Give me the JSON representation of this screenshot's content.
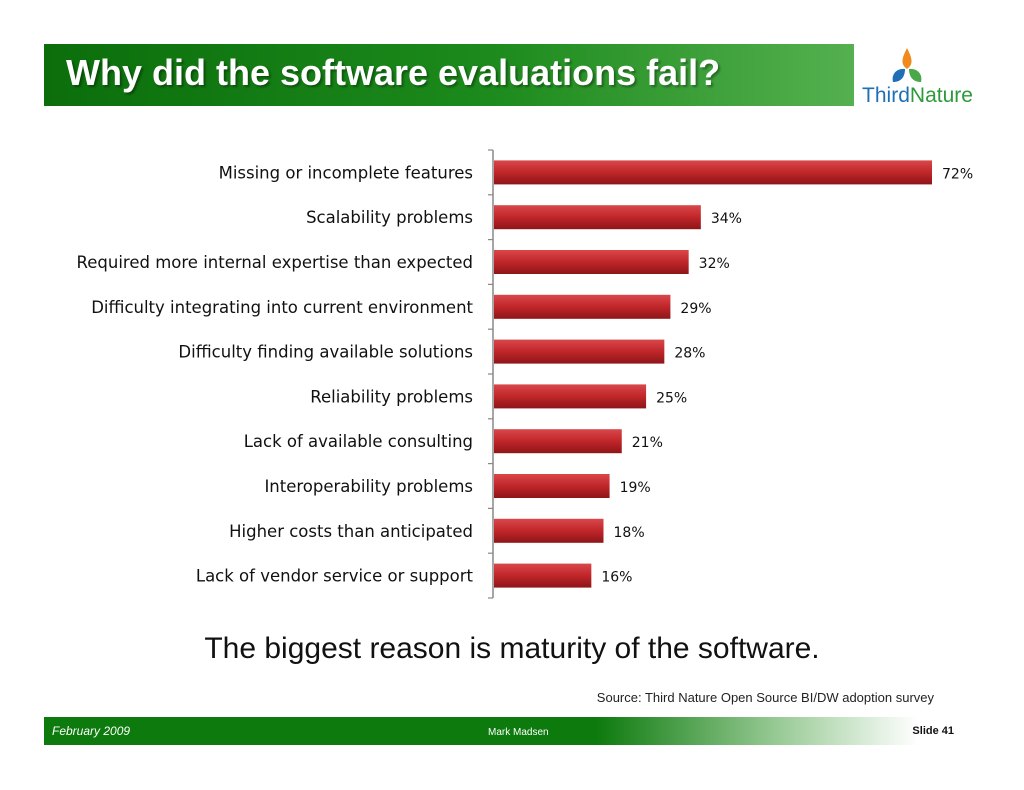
{
  "header": {
    "title": "Why did the software evaluations fail?"
  },
  "logo": {
    "word1": "Third",
    "word2": "Nature"
  },
  "chart_data": {
    "type": "bar",
    "orientation": "horizontal",
    "categories": [
      "Missing or incomplete features",
      "Scalability problems",
      "Required more internal expertise than expected",
      "Difficulty integrating into current environment",
      "Difficulty finding available solutions",
      "Reliability problems",
      "Lack of available consulting",
      "Interoperability problems",
      "Higher costs than anticipated",
      "Lack of vendor service or support"
    ],
    "values": [
      72,
      34,
      32,
      29,
      28,
      25,
      21,
      19,
      18,
      16
    ],
    "value_labels": [
      "72%",
      "34%",
      "32%",
      "29%",
      "28%",
      "25%",
      "21%",
      "19%",
      "18%",
      "16%"
    ],
    "xlim": [
      0,
      72
    ],
    "bar_color": "#c0262a",
    "grid": false
  },
  "subtitle": "The biggest reason is maturity of the software.",
  "source": "Source: Third Nature Open Source BI/DW adoption survey",
  "footer": {
    "date": "February 2009",
    "author": "Mark Madsen",
    "slide": "Slide 41"
  }
}
